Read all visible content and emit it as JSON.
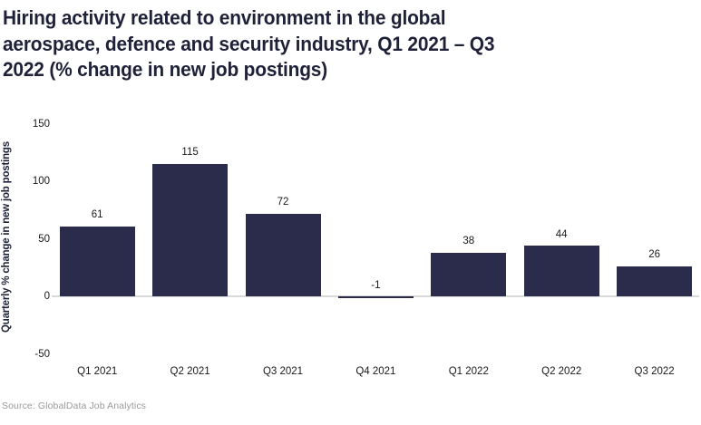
{
  "title_lines": [
    "Hiring activity related to environment in the global",
    "aerospace, defence and security industry, Q1 2021 – Q3",
    "2022 (% change in new job postings)"
  ],
  "source": "Source: GlobalData Job Analytics",
  "colors": {
    "bar": "#2b2b4c",
    "title": "#1e2138",
    "tick_text": "#1a1a1a",
    "zero_line": "#d9d9d9",
    "source_text": "#9a9a9a",
    "background": "#ffffff"
  },
  "chart_data": {
    "type": "bar",
    "title": "Hiring activity related to environment in the global aerospace, defence and security industry, Q1 2021 – Q3 2022 (% change in new job postings)",
    "categories": [
      "Q1 2021",
      "Q2 2021",
      "Q3 2021",
      "Q4 2021",
      "Q1 2022",
      "Q2 2022",
      "Q3 2022"
    ],
    "values": [
      61,
      115,
      72,
      -1,
      38,
      44,
      26
    ],
    "xlabel": "",
    "ylabel": "Quarterly % change in new job postings",
    "ylim": [
      -50,
      150
    ],
    "yticks": [
      150,
      100,
      50,
      0,
      -50
    ],
    "grid": false,
    "legend": false,
    "data_labels": true,
    "bar_color": "#2b2b4c"
  }
}
